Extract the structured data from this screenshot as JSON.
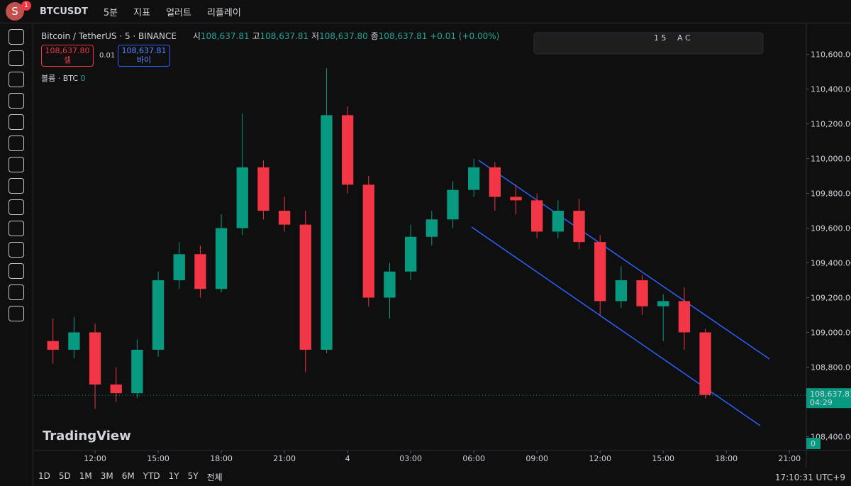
{
  "toolbar": {
    "avatar": "S",
    "badge": "1",
    "symbol": "BTCUSDT",
    "interval": "5분",
    "indicators": "지표",
    "alerts": "얼러트",
    "replay": "리플레이"
  },
  "legend": {
    "title": "Bitcoin / TetherUS · 5 · BINANCE",
    "open_label": "시",
    "open": "108,637.81",
    "high_label": "고",
    "high": "108,637.81",
    "low_label": "저",
    "low": "108,637.80",
    "close_label": "종",
    "close": "108,637.81",
    "change": "+0.01 (+0.00%)",
    "sell_price": "108,637.80",
    "sell": "셀",
    "spread": "0.01",
    "buy_price": "108,637.81",
    "buy": "바이",
    "volume": "볼륨 · BTC",
    "volume_value": "0"
  },
  "drawing_toolbar": {
    "fib": "1 5",
    "abc": "A C"
  },
  "watermark": "TradingView",
  "chart_data": {
    "type": "candlestick",
    "x": [
      10,
      11,
      12,
      13,
      14,
      15,
      16,
      17,
      18,
      19,
      20,
      21,
      22,
      23,
      24,
      25,
      26,
      27,
      28,
      29,
      30,
      31,
      32,
      33,
      34,
      35,
      36,
      37,
      38,
      39,
      40,
      41
    ],
    "open": [
      108950,
      108900,
      109000,
      108700,
      108650,
      108900,
      109300,
      109450,
      109250,
      109600,
      109950,
      109700,
      109620,
      108900,
      110250,
      109850,
      109200,
      109350,
      109550,
      109650,
      109820,
      109950,
      109780,
      109760,
      109580,
      109700,
      109520,
      109180,
      109300,
      109150,
      109180,
      109000
    ],
    "high": [
      109080,
      109090,
      109050,
      108800,
      108960,
      109350,
      109520,
      109500,
      109680,
      110260,
      109990,
      109780,
      109700,
      110520,
      110300,
      109900,
      109400,
      109620,
      109700,
      109870,
      110000,
      109980,
      109850,
      109800,
      109760,
      109770,
      109560,
      109380,
      109330,
      109220,
      109260,
      109020
    ],
    "low": [
      108820,
      108850,
      108560,
      108600,
      108620,
      108860,
      109250,
      109200,
      109230,
      109560,
      109650,
      109580,
      108770,
      108880,
      109800,
      109150,
      109080,
      109300,
      109500,
      109600,
      109780,
      109700,
      109680,
      109540,
      109540,
      109480,
      109100,
      109140,
      109100,
      108950,
      108900,
      108620
    ],
    "close": [
      108900,
      109000,
      108700,
      108650,
      108900,
      109300,
      109450,
      109250,
      109600,
      109950,
      109700,
      109620,
      108900,
      110250,
      109850,
      109200,
      109350,
      109550,
      109650,
      109820,
      109950,
      109780,
      109760,
      109580,
      109700,
      109520,
      109180,
      109300,
      109150,
      109180,
      109000,
      108640
    ],
    "color_up": "#089981",
    "color_down": "#f23645",
    "xlim": [
      9.1,
      45.8
    ],
    "xticks": [
      {
        "value": 12,
        "label": "12:00"
      },
      {
        "value": 15,
        "label": "15:00"
      },
      {
        "value": 18,
        "label": "18:00"
      },
      {
        "value": 21,
        "label": "21:00"
      },
      {
        "value": 24,
        "label": "4"
      },
      {
        "value": 27,
        "label": "03:00"
      },
      {
        "value": 30,
        "label": "06:00"
      },
      {
        "value": 33,
        "label": "09:00"
      },
      {
        "value": 36,
        "label": "12:00"
      },
      {
        "value": 39,
        "label": "15:00"
      },
      {
        "value": 42,
        "label": "18:00"
      },
      {
        "value": 45,
        "label": "21:00"
      }
    ],
    "ylim": [
      108320,
      110770
    ],
    "yticks": [
      {
        "value": 108400,
        "label": "108,400.00"
      },
      {
        "value": 108600,
        "label": "108,600.00"
      },
      {
        "value": 108800,
        "label": "108,800.00"
      },
      {
        "value": 109000,
        "label": "109,000.00"
      },
      {
        "value": 109200,
        "label": "109,200.00"
      },
      {
        "value": 109400,
        "label": "109,400.00"
      },
      {
        "value": 109600,
        "label": "109,600.00"
      },
      {
        "value": 109800,
        "label": "109,800.00"
      },
      {
        "value": 110000,
        "label": "110,000.00"
      },
      {
        "value": 110200,
        "label": "110,200.00"
      },
      {
        "value": 110400,
        "label": "110,400.00"
      },
      {
        "value": 110600,
        "label": "110,600.00"
      }
    ],
    "last_price": {
      "value": 108637.81,
      "label": "108,637.81"
    },
    "countdown": "04:29",
    "volume_axis": "0"
  },
  "ranges": [
    "1D",
    "5D",
    "1M",
    "3M",
    "6M",
    "YTD",
    "1Y",
    "5Y",
    "전체"
  ],
  "clock": "17:10:31 UTC+9"
}
